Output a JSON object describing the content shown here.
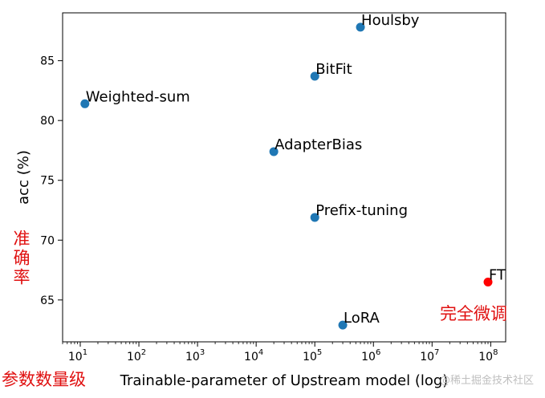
{
  "chart_data": {
    "type": "scatter",
    "xlabel": "Trainable-parameter of Upstream model (log)",
    "ylabel": "acc (%)",
    "xscale": "log",
    "xlim": [
      5,
      180000000.0
    ],
    "ylim": [
      61.5,
      89.0
    ],
    "yticks": [
      65,
      70,
      75,
      80,
      85
    ],
    "xtick_exponents": [
      1,
      2,
      3,
      4,
      5,
      6,
      7,
      8
    ],
    "grid": false,
    "points": [
      {
        "label": "Houlsby",
        "x": 600000,
        "y": 87.8,
        "color": "#1f77b4"
      },
      {
        "label": "BitFit",
        "x": 100000,
        "y": 83.7,
        "color": "#1f77b4"
      },
      {
        "label": "Weighted-sum",
        "x": 12,
        "y": 81.4,
        "color": "#1f77b4"
      },
      {
        "label": "AdapterBias",
        "x": 20000,
        "y": 77.4,
        "color": "#1f77b4"
      },
      {
        "label": "Prefix-tuning",
        "x": 100000,
        "y": 71.9,
        "color": "#1f77b4"
      },
      {
        "label": "FT",
        "x": 90000000,
        "y": 66.5,
        "color": "#ff0000"
      },
      {
        "label": "LoRA",
        "x": 300000,
        "y": 62.9,
        "color": "#1f77b4"
      }
    ]
  },
  "annotations": {
    "ylabel_cn": "准确率",
    "xlabel_cn": "参数数量级",
    "ft_cn": "完全微调"
  },
  "watermark": "@稀土掘金技术社区"
}
